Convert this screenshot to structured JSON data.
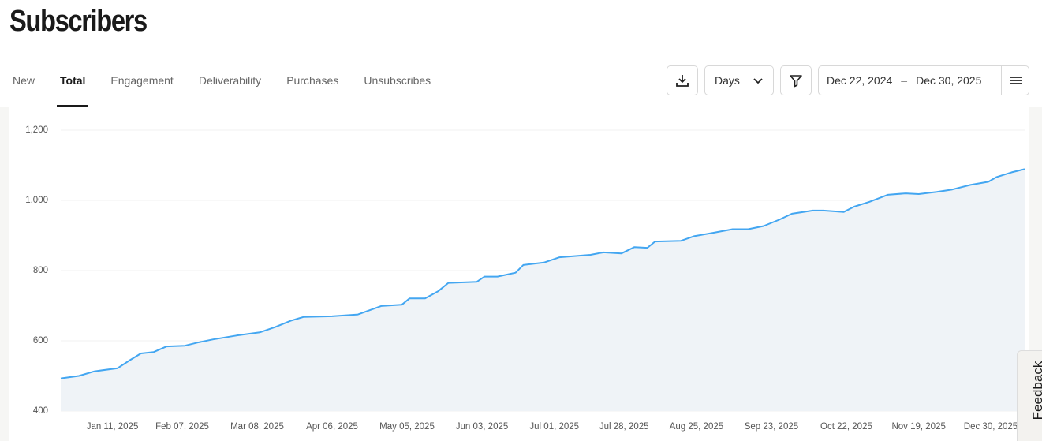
{
  "header": {
    "title": "Subscribers"
  },
  "tabs": [
    "New",
    "Total",
    "Engagement",
    "Deliverability",
    "Purchases",
    "Unsubscribes"
  ],
  "active_tab": 1,
  "controls": {
    "interval": "Days",
    "date_start": "Dec 22, 2024",
    "date_separator": "–",
    "date_end": "Dec 30, 2025"
  },
  "feedback": "Feedback",
  "chart_data": {
    "type": "line",
    "area": true,
    "color": "#43a6f1",
    "area_color": "#eff3f7",
    "grid": true,
    "x": [
      "2024-12-22",
      "2024-12-29",
      "2025-01-04",
      "2025-01-13",
      "2025-01-18",
      "2025-01-22",
      "2025-01-27",
      "2025-02-01",
      "2025-02-08",
      "2025-02-13",
      "2025-02-19",
      "2025-02-28",
      "2025-03-09",
      "2025-03-15",
      "2025-03-21",
      "2025-03-26",
      "2025-04-06",
      "2025-04-16",
      "2025-04-25",
      "2025-05-03",
      "2025-05-06",
      "2025-05-12",
      "2025-05-17",
      "2025-05-21",
      "2025-06-01",
      "2025-06-04",
      "2025-06-09",
      "2025-06-16",
      "2025-06-19",
      "2025-06-27",
      "2025-07-03",
      "2025-07-15",
      "2025-07-20",
      "2025-07-27",
      "2025-08-01",
      "2025-08-06",
      "2025-08-09",
      "2025-08-19",
      "2025-08-24",
      "2025-08-31",
      "2025-09-08",
      "2025-09-14",
      "2025-09-20",
      "2025-09-26",
      "2025-10-01",
      "2025-10-09",
      "2025-10-13",
      "2025-10-21",
      "2025-10-25",
      "2025-10-31",
      "2025-11-07",
      "2025-11-14",
      "2025-11-19",
      "2025-11-26",
      "2025-12-02",
      "2025-12-09",
      "2025-12-16",
      "2025-12-19",
      "2025-12-25",
      "2025-12-30"
    ],
    "values": [
      493,
      500,
      513,
      522,
      546,
      564,
      568,
      584,
      586,
      595,
      604,
      615,
      624,
      639,
      657,
      668,
      670,
      675,
      699,
      703,
      721,
      721,
      741,
      765,
      768,
      783,
      783,
      794,
      816,
      823,
      838,
      845,
      852,
      849,
      867,
      865,
      883,
      885,
      898,
      907,
      918,
      918,
      927,
      945,
      962,
      971,
      971,
      967,
      982,
      996,
      1016,
      1020,
      1018,
      1024,
      1031,
      1044,
      1053,
      1066,
      1080,
      1089
    ],
    "xlim": [
      "2024-12-22",
      "2025-12-30"
    ],
    "xticks": [
      {
        "value": "2025-01-11",
        "label": "Jan 11, 2025"
      },
      {
        "value": "2025-02-07",
        "label": "Feb 07, 2025"
      },
      {
        "value": "2025-03-08",
        "label": "Mar 08, 2025"
      },
      {
        "value": "2025-04-06",
        "label": "Apr 06, 2025"
      },
      {
        "value": "2025-05-05",
        "label": "May 05, 2025"
      },
      {
        "value": "2025-06-03",
        "label": "Jun 03, 2025"
      },
      {
        "value": "2025-07-01",
        "label": "Jul 01, 2025"
      },
      {
        "value": "2025-07-28",
        "label": "Jul 28, 2025"
      },
      {
        "value": "2025-08-25",
        "label": "Aug 25, 2025"
      },
      {
        "value": "2025-09-23",
        "label": "Sep 23, 2025"
      },
      {
        "value": "2025-10-22",
        "label": "Oct 22, 2025"
      },
      {
        "value": "2025-11-19",
        "label": "Nov 19, 2025"
      },
      {
        "value": "2025-12-30",
        "label": "Dec 30, 2025"
      }
    ],
    "ylim": [
      400,
      1200
    ],
    "yticks": [
      400,
      600,
      800,
      {
        "value": 1000,
        "label": "1,000"
      },
      {
        "value": 1200,
        "label": "1,200"
      }
    ]
  }
}
